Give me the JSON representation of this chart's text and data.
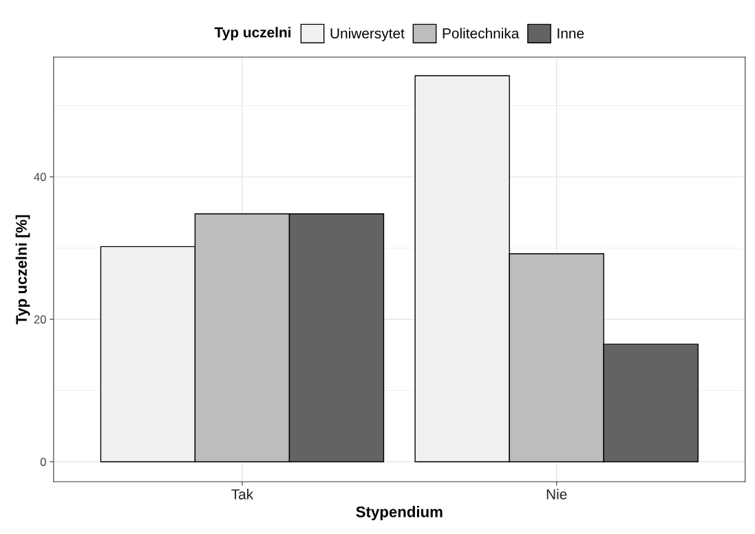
{
  "chart_data": {
    "type": "bar",
    "xlabel": "Stypendium",
    "ylabel": "Typ uczelni [%]",
    "legend_title": "Typ uczelni",
    "categories": [
      "Tak",
      "Nie"
    ],
    "series": [
      {
        "name": "Uniwersytet",
        "color": "#f0f0f0",
        "values": [
          30.2,
          54.2
        ]
      },
      {
        "name": "Politechnika",
        "color": "#bdbdbd",
        "values": [
          34.8,
          29.2
        ]
      },
      {
        "name": "Inne",
        "color": "#636363",
        "values": [
          34.8,
          16.5
        ]
      }
    ],
    "ylim": [
      -2.8,
      56.8
    ],
    "yticks": [
      0,
      20,
      40
    ],
    "grid": true,
    "legend": "top"
  }
}
